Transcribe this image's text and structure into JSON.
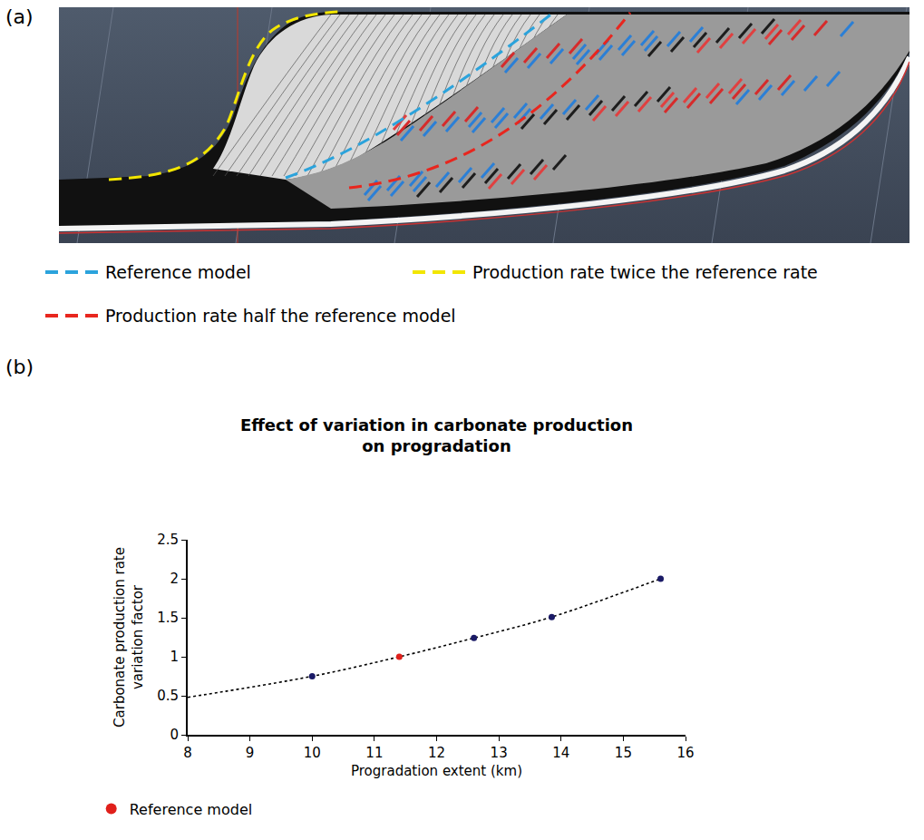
{
  "panel_labels": [
    "(a)",
    "(b)"
  ],
  "panel_a": {
    "legend": [
      {
        "name": "Reference model",
        "color": "#2ba3dc",
        "line_style": "dashed"
      },
      {
        "name": "Production rate twice the reference rate",
        "color": "#f2e600",
        "line_style": "dashed"
      },
      {
        "name": "Production rate half the reference model",
        "color": "#e8261e",
        "line_style": "dashed"
      }
    ]
  },
  "chart_data": {
    "type": "scatter",
    "title": "Effect of variation in carbonate production on progradation",
    "x_label": "Progradation extent (km)",
    "y_label": "Carbonate production rate variation factor",
    "xlim": [
      8,
      16
    ],
    "xticks": [
      8,
      9,
      10,
      11,
      12,
      13,
      14,
      15,
      16
    ],
    "ylim": [
      0,
      2.5
    ],
    "yticks": [
      0,
      0.5,
      1,
      1.5,
      2,
      2.5
    ],
    "grid": false,
    "legend": "bottom left",
    "series": [
      {
        "type": "line",
        "line_style": "dotted",
        "color": "#000000",
        "x": [
          8,
          10,
          11.4,
          12.6,
          13.85,
          15.6
        ],
        "values": [
          0.48,
          0.75,
          1.0,
          1.24,
          1.51,
          2.0
        ]
      },
      {
        "type": "scatter",
        "marker": "circle",
        "color": "#1a1a66",
        "x": [
          10,
          12.6,
          13.85,
          15.6
        ],
        "values": [
          0.75,
          1.24,
          1.51,
          2.0
        ]
      },
      {
        "name": "Reference model",
        "type": "scatter",
        "marker": "circle",
        "color": "#e0201b",
        "x": [
          11.4
        ],
        "values": [
          1.0
        ]
      }
    ]
  }
}
